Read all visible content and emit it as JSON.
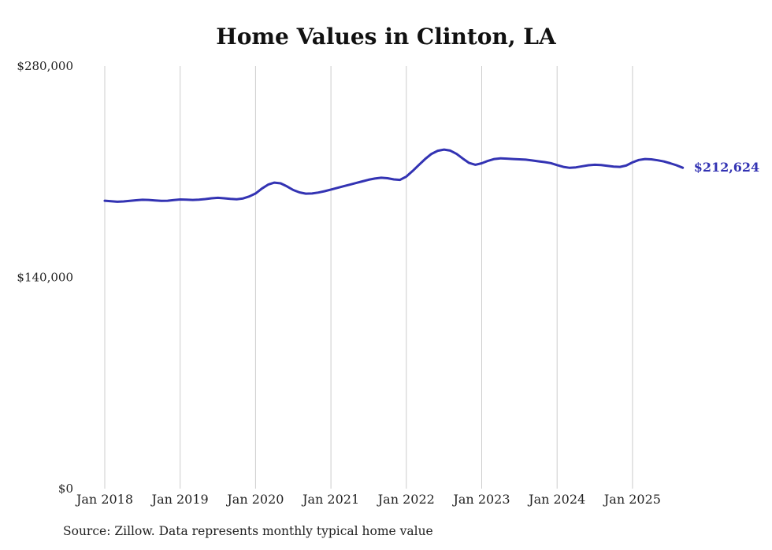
{
  "chart": {
    "title": "Home Values in Clinton, LA",
    "source": "Source: Zillow. Data represents monthly typical home value",
    "line_color": "#3333b3",
    "grid_color": "#cccccc",
    "text_color": "#222222"
  },
  "chart_data": {
    "type": "line",
    "title": "Home Values in Clinton, LA",
    "xlabel": "",
    "ylabel": "",
    "ylim": [
      0,
      280000
    ],
    "grid": "vertical-only",
    "legend": "none",
    "y_ticks": [
      {
        "value": 0,
        "label": "$0"
      },
      {
        "value": 140000,
        "label": "$140,000"
      },
      {
        "value": 280000,
        "label": "$280,000"
      }
    ],
    "x_ticks": [
      "Jan 2018",
      "Jan 2019",
      "Jan 2020",
      "Jan 2021",
      "Jan 2022",
      "Jan 2023",
      "Jan 2024",
      "Jan 2025"
    ],
    "final_value": 212624,
    "final_label": "$212,624",
    "series": [
      {
        "name": "Typical home value",
        "x": [
          "2018-01",
          "2018-02",
          "2018-03",
          "2018-04",
          "2018-05",
          "2018-06",
          "2018-07",
          "2018-08",
          "2018-09",
          "2018-10",
          "2018-11",
          "2018-12",
          "2019-01",
          "2019-02",
          "2019-03",
          "2019-04",
          "2019-05",
          "2019-06",
          "2019-07",
          "2019-08",
          "2019-09",
          "2019-10",
          "2019-11",
          "2019-12",
          "2020-01",
          "2020-02",
          "2020-03",
          "2020-04",
          "2020-05",
          "2020-06",
          "2020-07",
          "2020-08",
          "2020-09",
          "2020-10",
          "2020-11",
          "2020-12",
          "2021-01",
          "2021-02",
          "2021-03",
          "2021-04",
          "2021-05",
          "2021-06",
          "2021-07",
          "2021-08",
          "2021-09",
          "2021-10",
          "2021-11",
          "2021-12",
          "2022-01",
          "2022-02",
          "2022-03",
          "2022-04",
          "2022-05",
          "2022-06",
          "2022-07",
          "2022-08",
          "2022-09",
          "2022-10",
          "2022-11",
          "2022-12",
          "2023-01",
          "2023-02",
          "2023-03",
          "2023-04",
          "2023-05",
          "2023-06",
          "2023-07",
          "2023-08",
          "2023-09",
          "2023-10",
          "2023-11",
          "2023-12",
          "2024-01",
          "2024-02",
          "2024-03",
          "2024-04",
          "2024-05",
          "2024-06",
          "2024-07",
          "2024-08",
          "2024-09",
          "2024-10",
          "2024-11",
          "2024-12",
          "2025-01",
          "2025-02",
          "2025-03",
          "2025-04",
          "2025-05",
          "2025-06",
          "2025-07",
          "2025-08",
          "2025-09"
        ],
        "values": [
          190800,
          190400,
          190100,
          190300,
          190700,
          191100,
          191400,
          191300,
          191000,
          190700,
          190800,
          191200,
          191600,
          191500,
          191300,
          191500,
          191900,
          192400,
          192700,
          192400,
          192000,
          191800,
          192300,
          193600,
          195600,
          198800,
          201500,
          202800,
          202300,
          200300,
          197900,
          196300,
          195500,
          195600,
          196200,
          197100,
          198200,
          199300,
          200400,
          201400,
          202500,
          203600,
          204700,
          205500,
          206000,
          205700,
          204900,
          204600,
          206800,
          210500,
          214500,
          218400,
          221800,
          223900,
          224700,
          224000,
          221800,
          218700,
          215800,
          214600,
          215600,
          217200,
          218400,
          218900,
          218700,
          218400,
          218200,
          218000,
          217500,
          216900,
          216400,
          215700,
          214400,
          213200,
          212600,
          212900,
          213600,
          214300,
          214600,
          214400,
          213900,
          213400,
          213200,
          214100,
          216200,
          217800,
          218400,
          218200,
          217600,
          216800,
          215600,
          214300,
          212624
        ]
      }
    ]
  }
}
